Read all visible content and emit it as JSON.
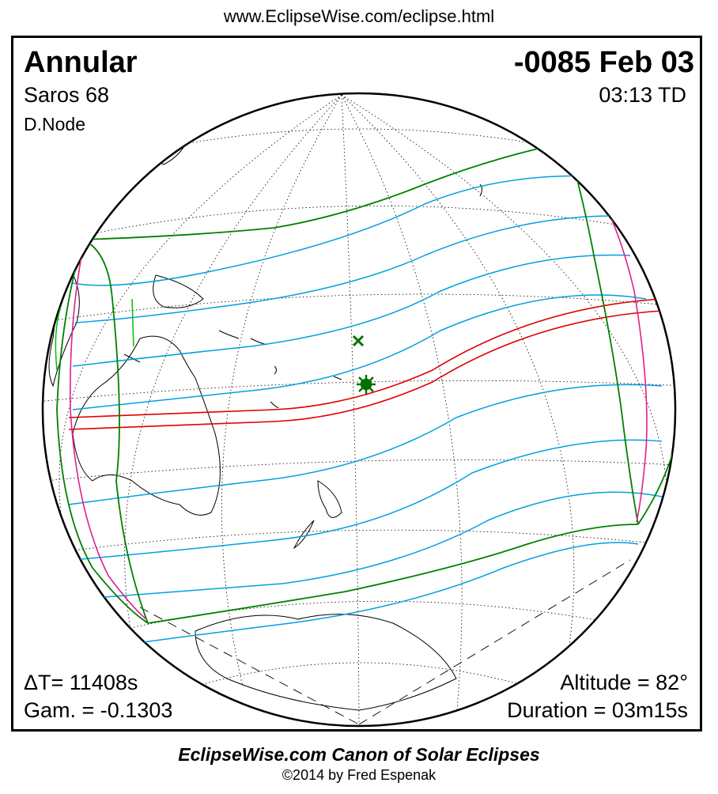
{
  "source_url": "www.EclipseWise.com/eclipse.html",
  "eclipse": {
    "type": "Annular",
    "date": "-0085 Feb 03",
    "saros": "Saros  68",
    "time": "03:13 TD",
    "node": "D.Node",
    "delta_t": "ΔT=  11408s",
    "gamma": "Gam. = -0.1303",
    "altitude": "Altitude = 82°",
    "duration": "Duration = 03m15s"
  },
  "footer": {
    "title": "EclipseWise.com Canon of Solar Eclipses",
    "copyright": "©2014 by Fred Espenak"
  },
  "colors": {
    "penumbral_limits": "#008000",
    "umbral_path": "#e00000",
    "magnitude_lines": "#00a0e0",
    "rise_set_curves": "#e0208a",
    "greatest_eclipse_marker": "#007000"
  },
  "icons": {
    "greatest_eclipse": "star-marker",
    "greatest_duration": "x-marker"
  }
}
